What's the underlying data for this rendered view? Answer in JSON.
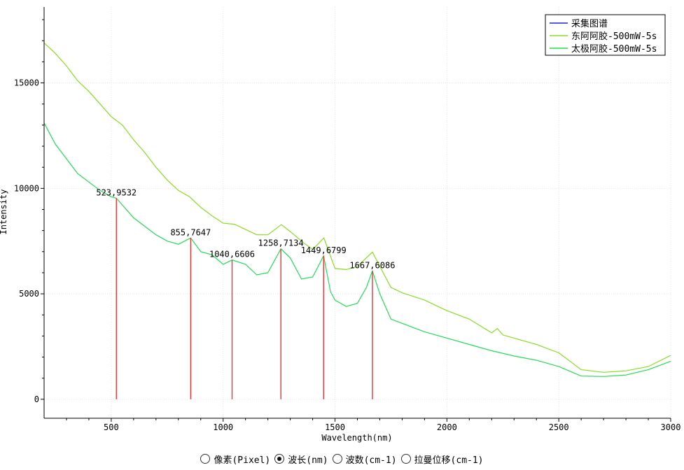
{
  "chart_data": {
    "type": "line",
    "title": "",
    "xlabel": "Wavelength(nm)",
    "ylabel": "Intensity",
    "xlim": [
      200,
      3000
    ],
    "ylim": [
      -900,
      18600
    ],
    "xticks": [
      500,
      1000,
      1500,
      2000,
      2500,
      3000
    ],
    "yticks": [
      0,
      5000,
      10000,
      15000
    ],
    "grid": true,
    "legend_position": "top-right",
    "series": [
      {
        "name": "采集图谱",
        "color": "#2222dd",
        "x": [],
        "y": []
      },
      {
        "name": "东阿阿胶-500mW-5s",
        "color": "#88dd22",
        "x": [
          200,
          250,
          300,
          350,
          400,
          450,
          500,
          550,
          600,
          650,
          700,
          750,
          800,
          850,
          900,
          950,
          1000,
          1050,
          1100,
          1150,
          1200,
          1260,
          1300,
          1350,
          1400,
          1450,
          1500,
          1550,
          1600,
          1667,
          1700,
          1750,
          1800,
          1900,
          2000,
          2100,
          2200,
          2225,
          2250,
          2300,
          2400,
          2500,
          2600,
          2700,
          2800,
          2900,
          3000
        ],
        "y": [
          16900,
          16400,
          15800,
          15100,
          14600,
          14000,
          13400,
          13000,
          12300,
          11700,
          11000,
          10400,
          9900,
          9600,
          9100,
          8700,
          8350,
          8300,
          8050,
          7800,
          7800,
          8280,
          7950,
          7500,
          7100,
          7650,
          6200,
          6150,
          6300,
          6980,
          6300,
          5300,
          5050,
          4700,
          4200,
          3800,
          3150,
          3350,
          3050,
          2900,
          2600,
          2200,
          1400,
          1280,
          1350,
          1550,
          2080
        ]
      },
      {
        "name": "太极阿胶-500mW-5s",
        "color": "#22dd55",
        "x": [
          200,
          250,
          300,
          350,
          400,
          450,
          500,
          523,
          550,
          600,
          650,
          700,
          750,
          800,
          855,
          900,
          950,
          1000,
          1040,
          1100,
          1150,
          1200,
          1258,
          1300,
          1350,
          1400,
          1449,
          1480,
          1500,
          1550,
          1600,
          1640,
          1667,
          1700,
          1750,
          1800,
          1900,
          2000,
          2100,
          2200,
          2300,
          2400,
          2500,
          2600,
          2700,
          2800,
          2900,
          3000
        ],
        "y": [
          13100,
          12100,
          11400,
          10700,
          10300,
          9900,
          9600,
          9532,
          9200,
          8600,
          8200,
          7800,
          7500,
          7350,
          7647,
          7000,
          6850,
          6400,
          6606,
          6400,
          5900,
          6000,
          7134,
          6700,
          5700,
          5800,
          6799,
          5100,
          4700,
          4400,
          4550,
          5300,
          6086,
          5000,
          3800,
          3600,
          3200,
          2900,
          2600,
          2300,
          2050,
          1850,
          1550,
          1100,
          1080,
          1150,
          1400,
          1800
        ]
      }
    ],
    "peaks": [
      {
        "x": 523,
        "y": 9532,
        "label": "523,9532",
        "color": "#ee3333"
      },
      {
        "x": 855,
        "y": 7647,
        "label": "855,7647",
        "color": "#ee3333"
      },
      {
        "x": 1040,
        "y": 6606,
        "label": "1040,6606",
        "color": "#ee3333"
      },
      {
        "x": 1258,
        "y": 7134,
        "label": "1258,7134",
        "color": "#ee3333"
      },
      {
        "x": 1449,
        "y": 6799,
        "label": "1449,6799",
        "color": "#ee3333"
      },
      {
        "x": 1667,
        "y": 6086,
        "label": "1667,6086",
        "color": "#ee3333"
      }
    ]
  },
  "mode_selector": {
    "options": [
      {
        "label": "像素(Pixel)",
        "checked": false
      },
      {
        "label": "波长(nm)",
        "checked": true
      },
      {
        "label": "波数(cm-1)",
        "checked": false
      },
      {
        "label": "拉曼位移(cm-1)",
        "checked": false
      }
    ]
  }
}
